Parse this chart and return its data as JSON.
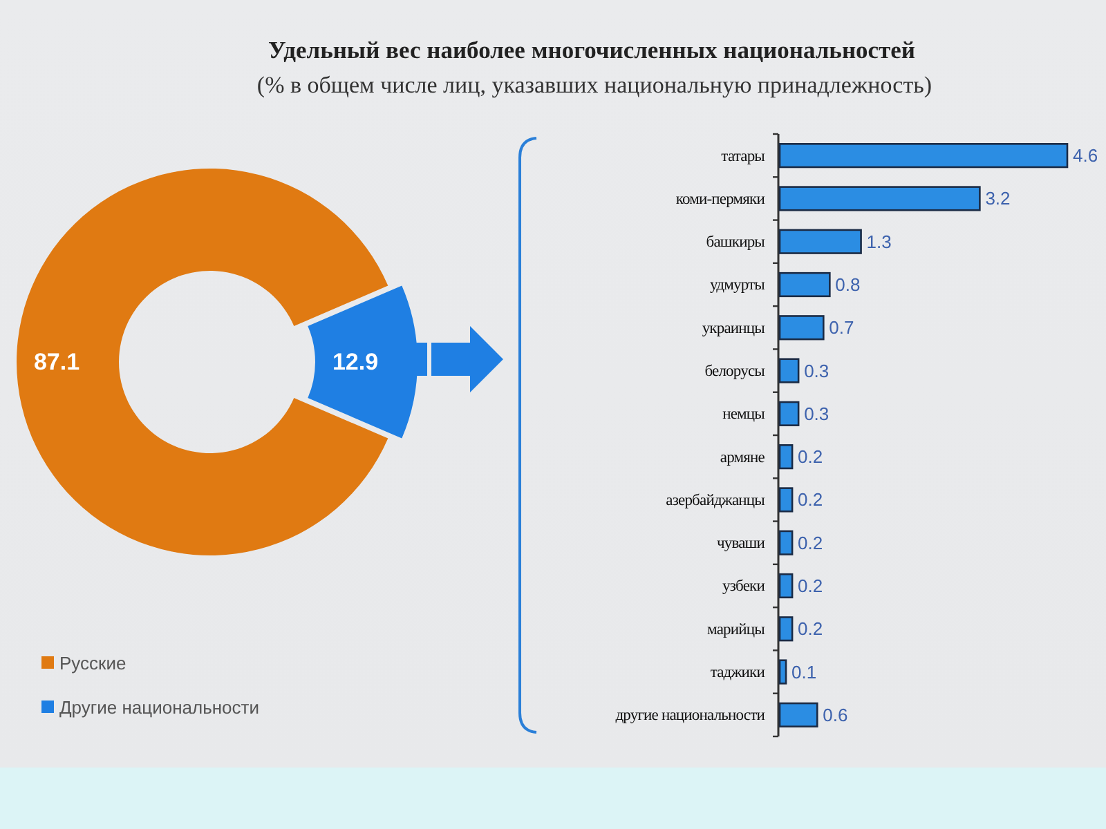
{
  "chart_data": [
    {
      "type": "donut",
      "title": "Удельный вес наиболее многочисленных национальностей",
      "subtitle": "(% в общем числе лиц, указавших национальную принадлежность)",
      "categories": [
        "Русские",
        "Другие национальности"
      ],
      "values": [
        87.1,
        12.9
      ],
      "colors": [
        "#e07a12",
        "#1f7fe3"
      ],
      "data_labels": true,
      "legend": "bottom left"
    },
    {
      "type": "bar",
      "orientation": "horizontal",
      "categories": [
        "татары",
        "коми-пермяки",
        "башкиры",
        "удмурты",
        "украинцы",
        "белорусы",
        "немцы",
        "армяне",
        "азербайджанцы",
        "чуваши",
        "узбеки",
        "марийцы",
        "таджики",
        "другие национальности"
      ],
      "values": [
        4.6,
        3.2,
        1.3,
        0.8,
        0.7,
        0.3,
        0.3,
        0.2,
        0.2,
        0.2,
        0.2,
        0.2,
        0.1,
        0.6
      ],
      "color": "#2b8de3",
      "data_labels": true,
      "tick_labels": "y"
    }
  ]
}
